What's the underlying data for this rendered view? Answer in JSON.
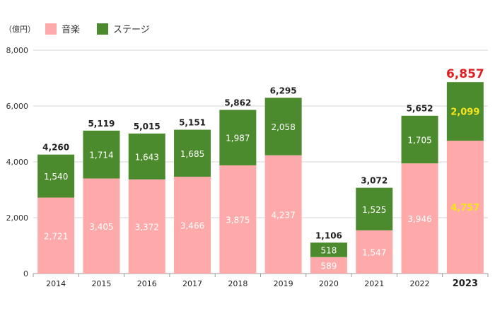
{
  "chart_data": {
    "type": "bar",
    "stacked": true,
    "unit_label": "（億円）",
    "categories": [
      "2014",
      "2015",
      "2016",
      "2017",
      "2018",
      "2019",
      "2020",
      "2021",
      "2022",
      "2023"
    ],
    "series": [
      {
        "name": "音楽",
        "color": "#ffaaaa",
        "values": [
          2721,
          3405,
          3372,
          3466,
          3875,
          4237,
          589,
          1547,
          3946,
          4757
        ]
      },
      {
        "name": "ステージ",
        "color": "#4c8a2e",
        "values": [
          1540,
          1714,
          1643,
          1685,
          1987,
          2058,
          518,
          1525,
          1705,
          2099
        ]
      }
    ],
    "totals": [
      4260,
      5119,
      5015,
      5151,
      5862,
      6295,
      1106,
      3072,
      5652,
      6857
    ],
    "ylim": [
      0,
      8000
    ],
    "yticks": [
      0,
      2000,
      4000,
      6000,
      8000
    ],
    "grid": true,
    "legend_position": "top-left",
    "highlight": {
      "category": "2023",
      "total_color": "#e02020",
      "value_color": "#f5e51e"
    }
  }
}
